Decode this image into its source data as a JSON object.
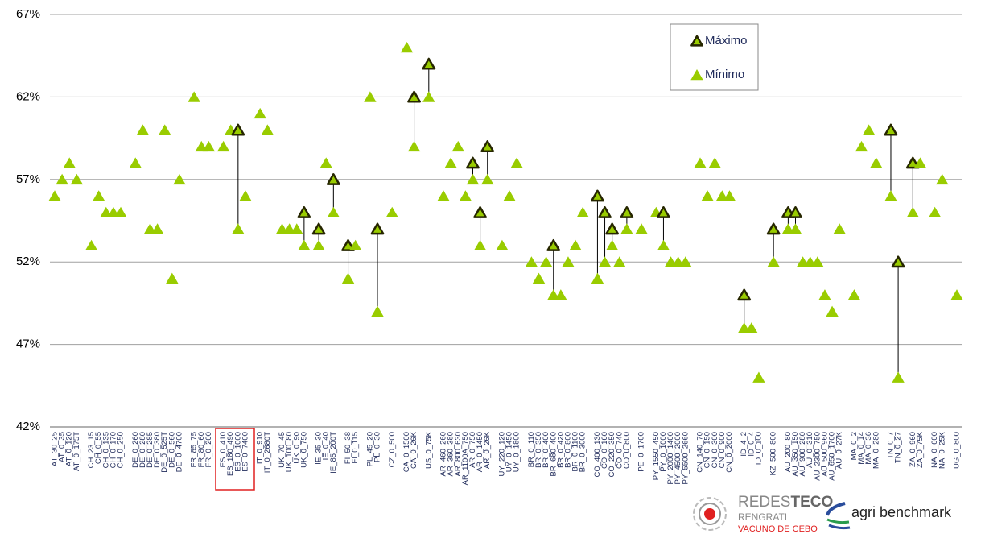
{
  "chart_data": {
    "type": "range-scatter",
    "categories": [
      "AT_30_25",
      "AT_0_35",
      "AT_0_120",
      "AT_0_175T",
      null,
      "CH_23_15",
      "CH_0_55",
      "CH_0_135",
      "CH_0_170",
      "CH_0_250",
      null,
      "DE_0_260",
      "DE_0_280",
      "DE_0_285",
      "DE_0_380",
      "DE_0_525T",
      "DE_0_560",
      "DE_0_4700",
      null,
      "FR_85_75",
      "FR_80_60",
      "FR_0_200",
      null,
      "ES_0_410",
      "ES_180_490",
      "ES_0_1000",
      "ES_0_7400",
      null,
      "IT_0_910",
      "IT_0_2680T",
      null,
      "UK_70_45",
      "UK_100_80",
      "UK_0_90",
      "UK_0_750",
      null,
      "IE_35_30",
      "IE_0_40",
      "IE_85_200T",
      null,
      "FI_50_38",
      "FI_0_115",
      null,
      "PL_45_20",
      "PL_0_30",
      null,
      "CZ_0_500",
      null,
      "CA_0_1500",
      "CA_0_26K",
      null,
      "US_0_75K",
      null,
      "AR_460_260",
      "AR_360_380",
      "AR_800_630",
      "AR_1100A_750",
      "AR_0_750",
      "AR_0_1450",
      "AR_0_26K",
      null,
      "UY_220_120",
      "UY_0_1450",
      "UY_0_1800",
      null,
      "BR_0_110",
      "BR_0_350",
      "BR_0_400",
      "BR_680_400",
      "BR_0_420",
      "BR_0_800",
      "BR_0_1100",
      "BR_0_3000",
      null,
      "CO_400_130",
      "CO_0_160",
      "CO_220_350",
      "CO_0_740",
      "CO_0_800",
      null,
      "PE_0_1700",
      null,
      "PY_1550_450",
      "PY_0_1000",
      "PY_2000_1400",
      "PY_4500_2000",
      "PY_5500_2660",
      null,
      "CN_140_70",
      "CN_0_150",
      "CN_0_300",
      "CN_0_900",
      "CN_0_2000",
      null,
      "ID_4_2",
      "ID_0_4",
      "ID_0_100",
      null,
      "KZ_500_800",
      null,
      "AU_200_80",
      "AU_350_150",
      "AU_900_280",
      "AU_0_310",
      "AU_2300_750",
      "AU_500_960",
      "AU_650_1700",
      "AU_0_27K",
      null,
      "MA_0_2",
      "MA_0_14",
      "MA_0_36",
      "MA_0_280",
      null,
      "TN_0_7",
      "TN_0_27",
      null,
      "ZA_0_960",
      "ZA_0_75K",
      null,
      "NA_0_600",
      "NA_0_25K",
      null,
      "UG_0_800"
    ],
    "series": [
      {
        "name": "Máximo",
        "color": "#262600",
        "values": [
          null,
          null,
          null,
          null,
          null,
          null,
          null,
          null,
          null,
          null,
          null,
          null,
          null,
          null,
          null,
          null,
          null,
          null,
          null,
          null,
          null,
          null,
          null,
          null,
          null,
          60,
          null,
          null,
          null,
          null,
          null,
          null,
          null,
          null,
          55,
          null,
          54,
          null,
          57,
          null,
          53,
          null,
          null,
          null,
          54,
          null,
          null,
          null,
          null,
          62,
          null,
          64,
          null,
          null,
          null,
          null,
          null,
          58,
          55,
          59,
          null,
          null,
          null,
          null,
          null,
          null,
          null,
          null,
          53,
          null,
          null,
          null,
          null,
          null,
          56,
          55,
          54,
          null,
          55,
          null,
          null,
          null,
          null,
          55,
          null,
          null,
          null,
          null,
          null,
          null,
          null,
          null,
          null,
          null,
          50,
          null,
          null,
          null,
          54,
          null,
          55,
          55,
          null,
          null,
          null,
          null,
          null,
          null,
          null,
          null,
          null,
          null,
          null,
          null,
          60,
          52,
          null,
          58,
          null,
          null,
          null,
          null,
          null,
          null
        ]
      },
      {
        "name": "Mínimo",
        "color": "#99cc00",
        "values": [
          56,
          57,
          58,
          57,
          null,
          53,
          56,
          55,
          55,
          55,
          null,
          58,
          60,
          54,
          54,
          60,
          51,
          57,
          null,
          62,
          59,
          59,
          null,
          59,
          60,
          54,
          56,
          null,
          61,
          60,
          null,
          54,
          54,
          54,
          53,
          null,
          53,
          58,
          55,
          null,
          51,
          53,
          null,
          62,
          49,
          null,
          55,
          null,
          65,
          59,
          null,
          62,
          null,
          56,
          58,
          59,
          56,
          57,
          53,
          57,
          null,
          53,
          56,
          58,
          null,
          52,
          51,
          52,
          50,
          50,
          52,
          53,
          55,
          null,
          51,
          52,
          53,
          52,
          54,
          null,
          54,
          null,
          55,
          53,
          52,
          52,
          52,
          null,
          58,
          56,
          58,
          56,
          56,
          null,
          48,
          48,
          45,
          null,
          52,
          null,
          54,
          54,
          52,
          52,
          52,
          50,
          49,
          54,
          null,
          50,
          59,
          60,
          58,
          null,
          56,
          45,
          null,
          55,
          58,
          null,
          55,
          57,
          null,
          50
        ]
      }
    ],
    "ylim": [
      42,
      67
    ],
    "yticks": [
      {
        "value": 42,
        "label": "42%"
      },
      {
        "value": 47,
        "label": "47%"
      },
      {
        "value": 52,
        "label": "52%"
      },
      {
        "value": 57,
        "label": "57%"
      },
      {
        "value": 62,
        "label": "62%"
      },
      {
        "value": 67,
        "label": "67%"
      }
    ],
    "grid": true,
    "legend": "top-right"
  },
  "footer": {
    "brand_light": "REDES",
    "brand_bold": "TECO",
    "brand_line2": "RENGRATI",
    "brand_line3": "VACUNO DE CEBO",
    "partner": "agri benchmark"
  }
}
